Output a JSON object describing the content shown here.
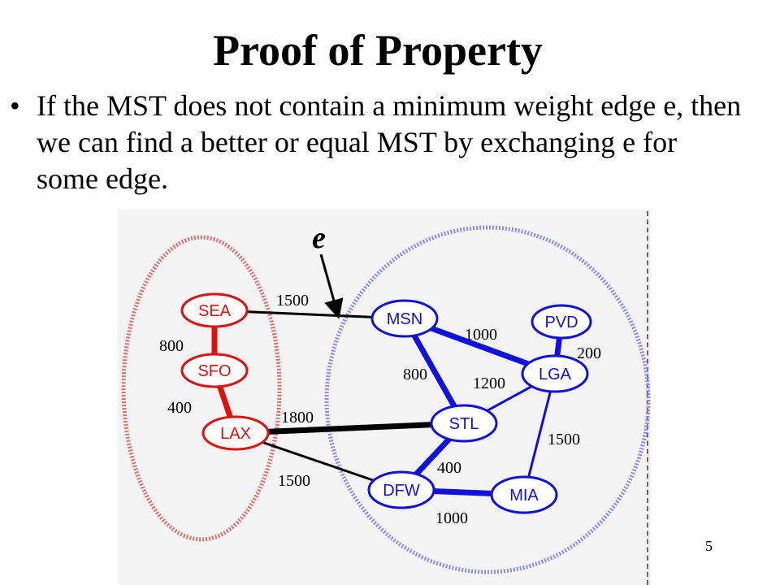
{
  "slide": {
    "title": "Proof of Property",
    "bullet": "If the MST does not contain a minimum weight edge e, then we can find a better or equal MST by exchanging e for some edge.",
    "page_number": "5"
  },
  "diagram": {
    "edge_label": "e",
    "colors": {
      "left": "#e01010",
      "right": "#1010e0",
      "cross": "#000000"
    },
    "nodes": [
      {
        "id": "SEA",
        "label": "SEA",
        "side": "left"
      },
      {
        "id": "SFO",
        "label": "SFO",
        "side": "left"
      },
      {
        "id": "LAX",
        "label": "LAX",
        "side": "left"
      },
      {
        "id": "MSN",
        "label": "MSN",
        "side": "right"
      },
      {
        "id": "PVD",
        "label": "PVD",
        "side": "right"
      },
      {
        "id": "LGA",
        "label": "LGA",
        "side": "right"
      },
      {
        "id": "STL",
        "label": "STL",
        "side": "right"
      },
      {
        "id": "DFW",
        "label": "DFW",
        "side": "right"
      },
      {
        "id": "MIA",
        "label": "MIA",
        "side": "right"
      }
    ],
    "edges": [
      {
        "from": "SEA",
        "to": "SFO",
        "weight": "800",
        "mst": true
      },
      {
        "from": "SFO",
        "to": "LAX",
        "weight": "400",
        "mst": true
      },
      {
        "from": "SEA",
        "to": "MSN",
        "weight": "1500",
        "mst": false
      },
      {
        "from": "LAX",
        "to": "STL",
        "weight": "1800",
        "mst": true
      },
      {
        "from": "LAX",
        "to": "DFW",
        "weight": "1500",
        "mst": false
      },
      {
        "from": "MSN",
        "to": "LGA",
        "weight": "1000",
        "mst": true
      },
      {
        "from": "MSN",
        "to": "STL",
        "weight": "800",
        "mst": true
      },
      {
        "from": "PVD",
        "to": "LGA",
        "weight": "200",
        "mst": true
      },
      {
        "from": "STL",
        "to": "LGA",
        "weight": "1200",
        "mst": false
      },
      {
        "from": "STL",
        "to": "DFW",
        "weight": "400",
        "mst": true
      },
      {
        "from": "LGA",
        "to": "MIA",
        "weight": "1500",
        "mst": false
      },
      {
        "from": "DFW",
        "to": "MIA",
        "weight": "1000",
        "mst": true
      }
    ]
  }
}
